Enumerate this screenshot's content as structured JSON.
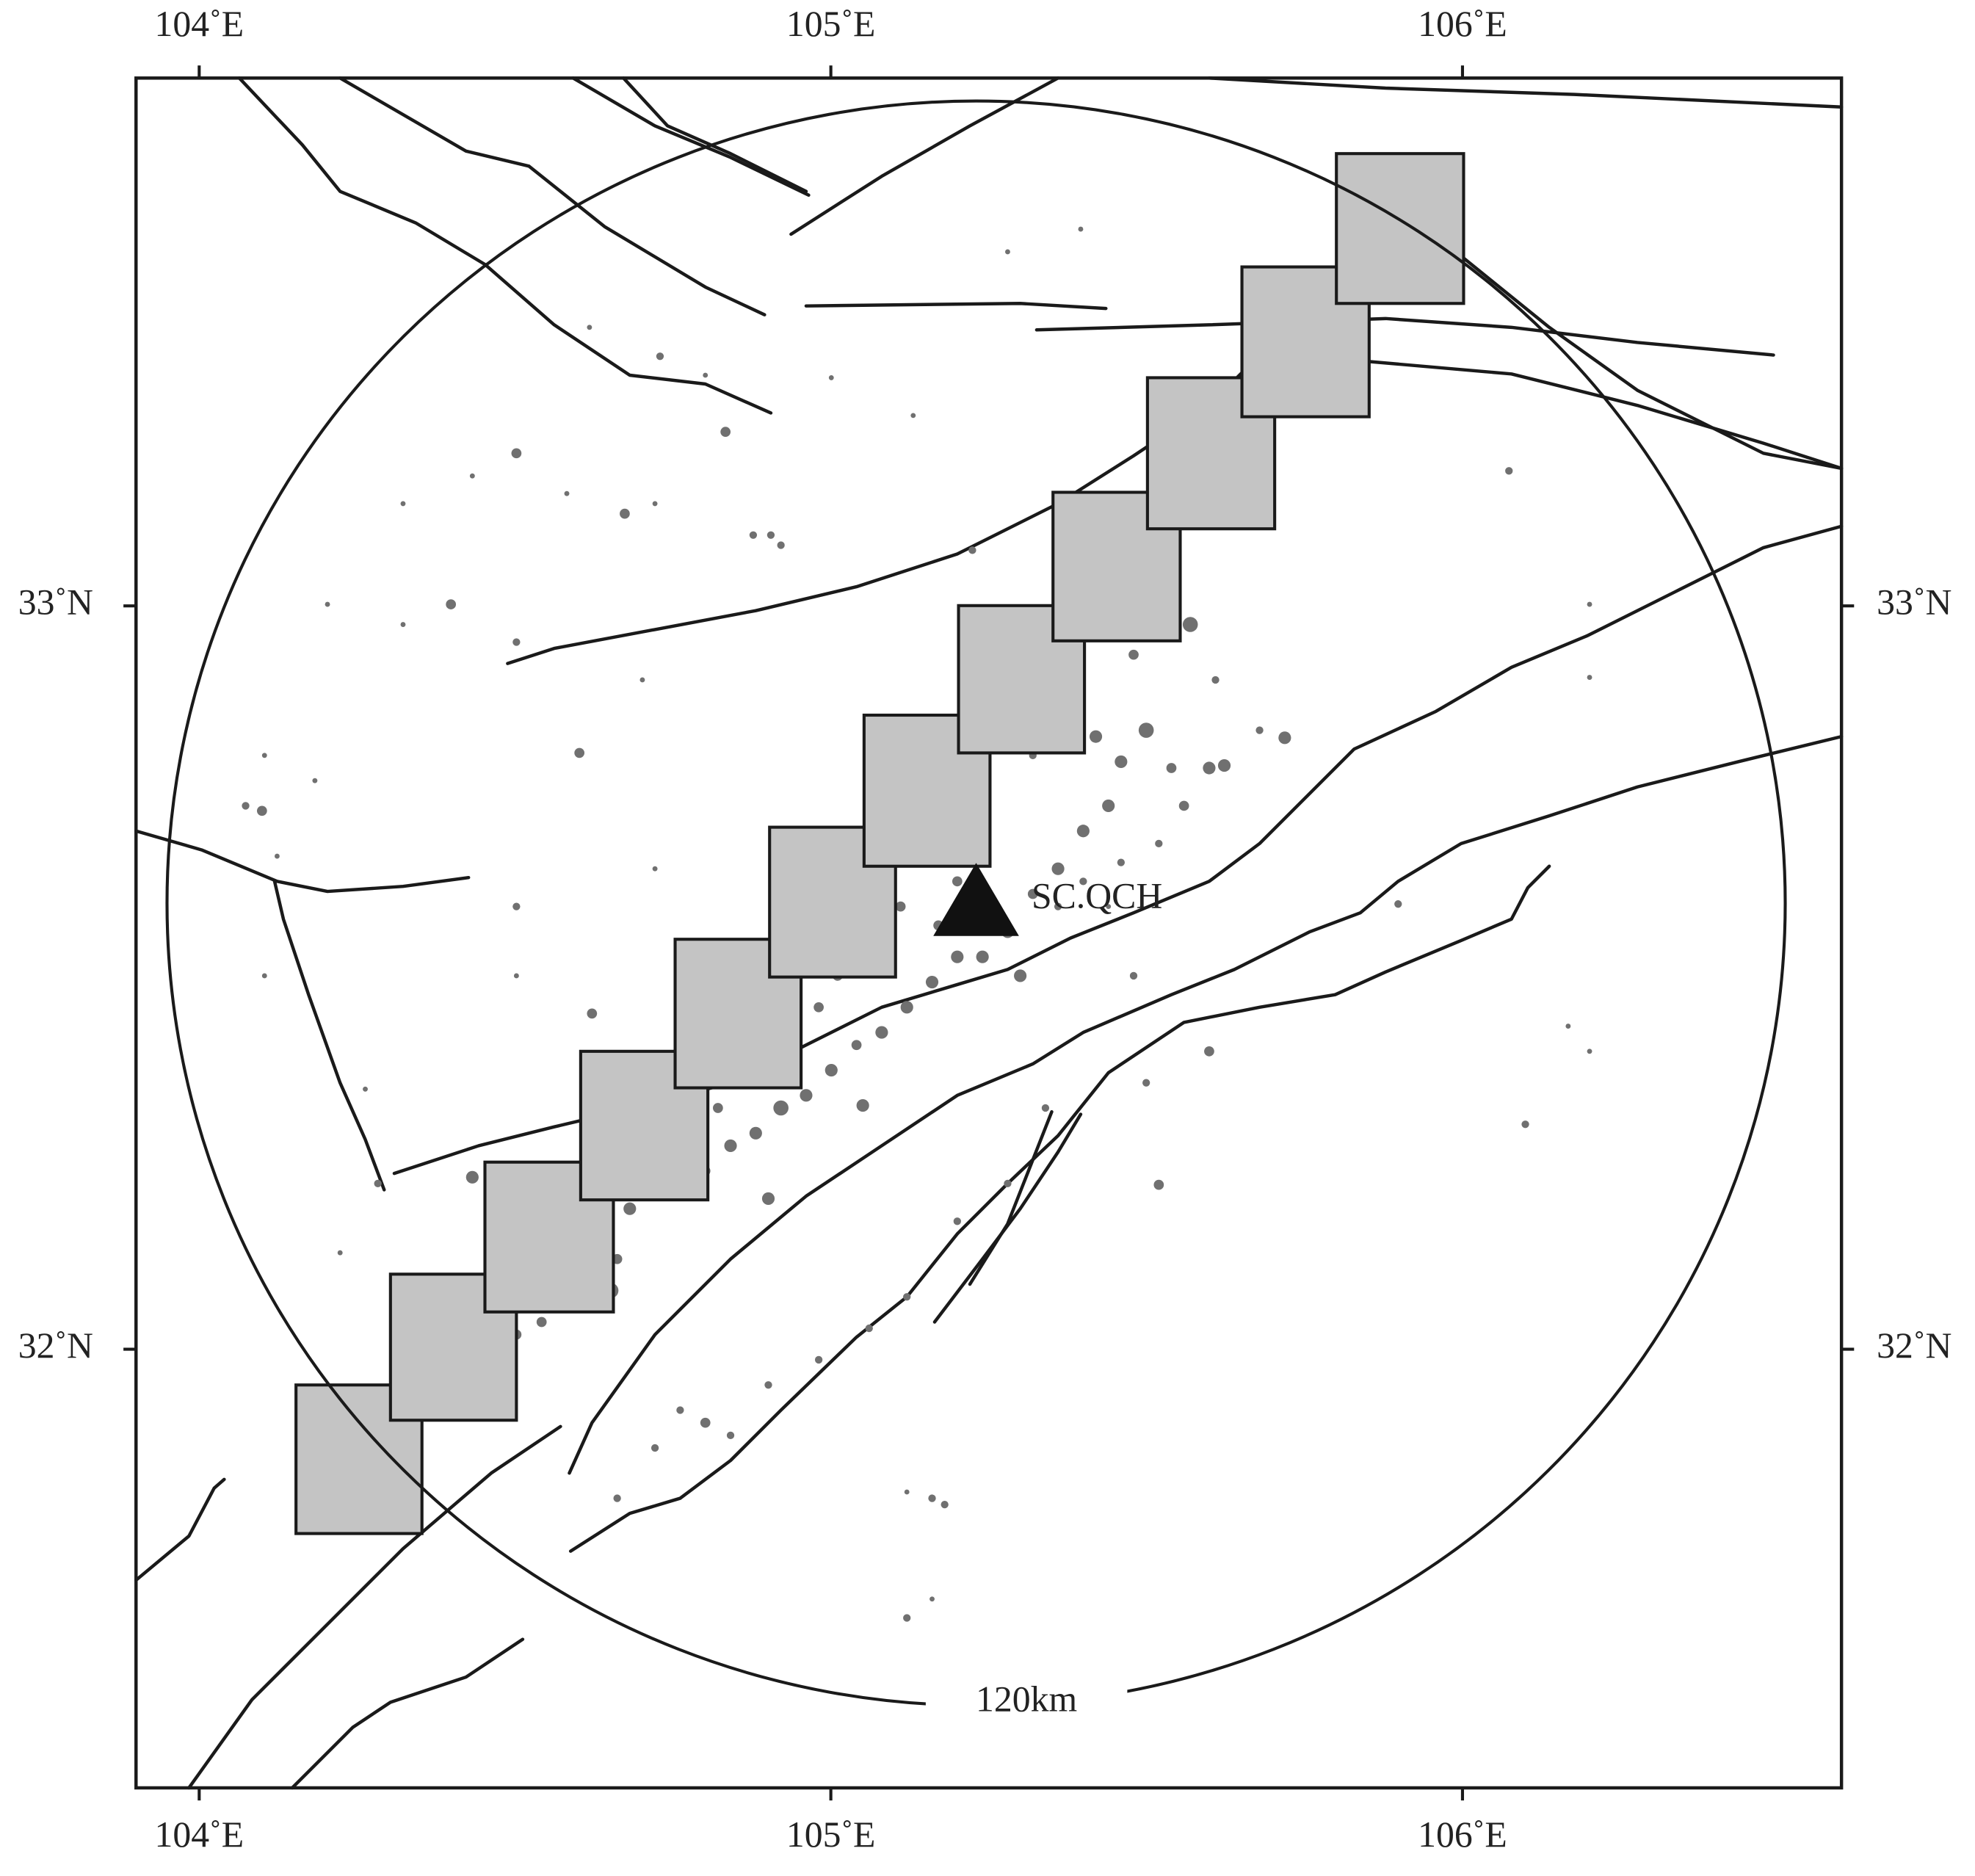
{
  "map": {
    "xlim": [
      103.9,
      106.6
    ],
    "ylim": [
      31.41,
      33.71
    ],
    "xticks": [
      {
        "value": 104,
        "label": "104˚E"
      },
      {
        "value": 105,
        "label": "105˚E"
      },
      {
        "value": 106,
        "label": "106˚E"
      }
    ],
    "yticks": [
      {
        "value": 32,
        "label": "32˚N"
      },
      {
        "value": 33,
        "label": "33˚N"
      }
    ],
    "station": {
      "name": "SC.QCH",
      "lon": 105.23,
      "lat": 32.6
    },
    "range_circle": {
      "radius_km": 120,
      "label": "120km"
    }
  }
}
